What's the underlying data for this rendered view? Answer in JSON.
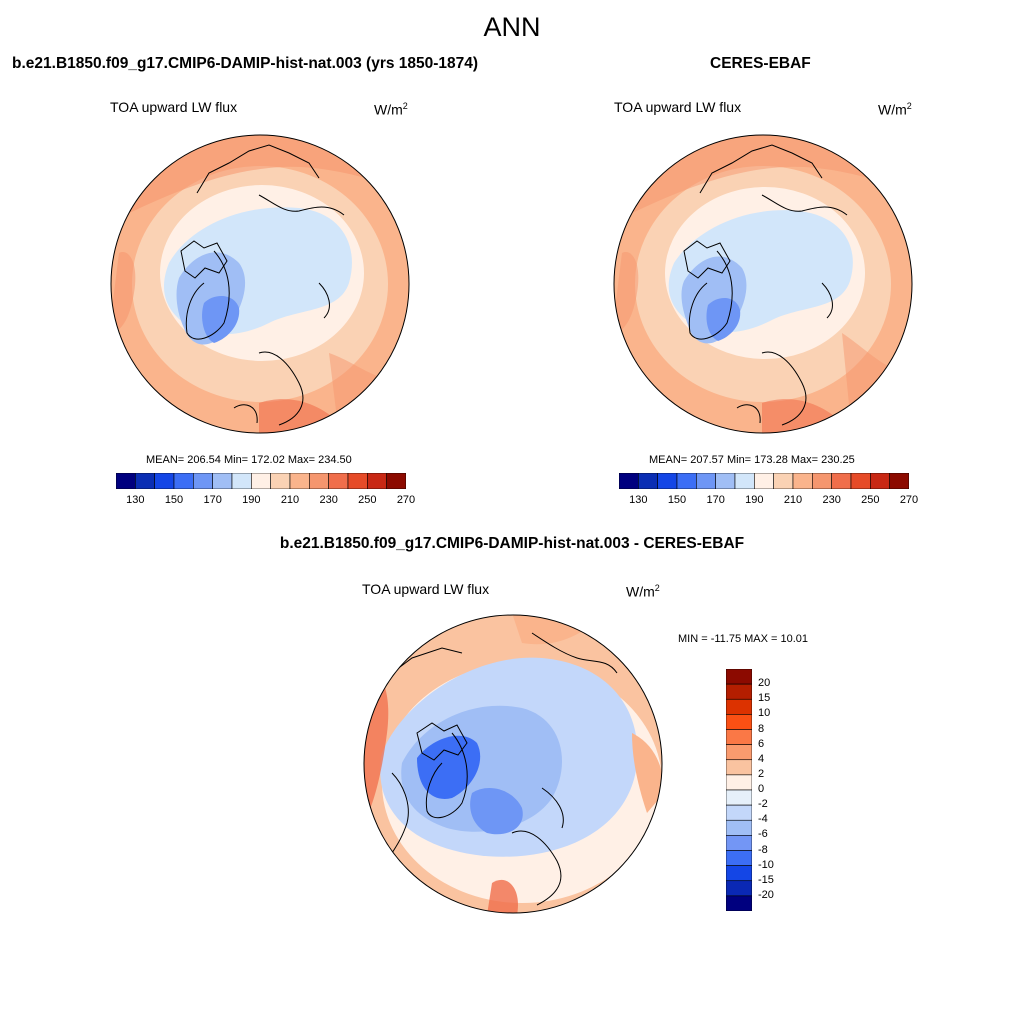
{
  "title": "ANN",
  "panels": {
    "left": {
      "header": "b.e21.B1850.f09_g17.CMIP6-DAMIP-hist-nat.003 (yrs 1850-1874)",
      "subtitle": "TOA upward LW flux",
      "units": "W/m",
      "units_sup": "2",
      "stats": "MEAN= 206.54  Min= 172.02  Max= 234.50"
    },
    "right": {
      "header": "CERES-EBAF",
      "subtitle": "TOA upward LW flux",
      "units": "W/m",
      "units_sup": "2",
      "stats": "MEAN= 207.57  Min= 173.28  Max= 230.25"
    },
    "diff": {
      "header": "b.e21.B1850.f09_g17.CMIP6-DAMIP-hist-nat.003 - CERES-EBAF",
      "subtitle": "TOA upward LW flux",
      "units": "W/m",
      "units_sup": "2",
      "stats": "MIN = -11.75 MAX =  10.01"
    }
  },
  "abs_colorbar": {
    "labels": [
      "130",
      "150",
      "170",
      "190",
      "210",
      "230",
      "250",
      "270"
    ],
    "colors": [
      "#00007f",
      "#0a2eb4",
      "#1446e6",
      "#3c6ef5",
      "#6e96f5",
      "#a0bef5",
      "#d2e6fa",
      "#fff0e6",
      "#fad2b4",
      "#fab48c",
      "#f5966e",
      "#f06e4b",
      "#e64b28",
      "#c82814",
      "#8c0a00"
    ]
  },
  "diff_colorbar": {
    "labels": [
      "20",
      "15",
      "10",
      "8",
      "6",
      "4",
      "2",
      "0",
      "-2",
      "-4",
      "-6",
      "-8",
      "-10",
      "-15",
      "-20"
    ],
    "colors": [
      "#8c0a00",
      "#b41e00",
      "#dc3200",
      "#fa5014",
      "#fa7846",
      "#fa9b6e",
      "#fac3a0",
      "#fff0e6",
      "#e6f0fa",
      "#c3d7fa",
      "#a0bef5",
      "#7396f5",
      "#3c6ef5",
      "#1446e6",
      "#0a28b4",
      "#00007f"
    ]
  }
}
